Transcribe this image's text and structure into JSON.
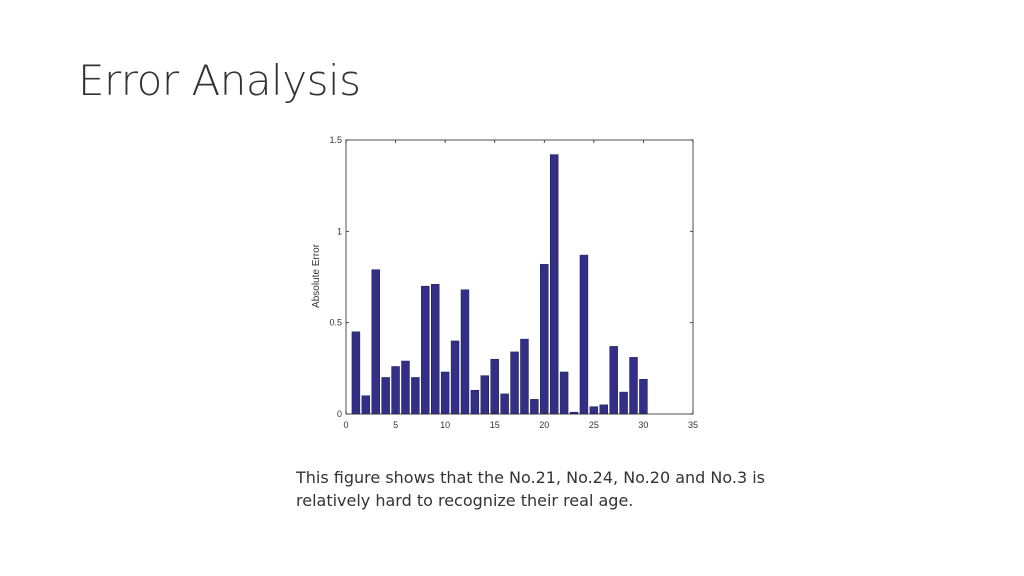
{
  "slide": {
    "title": "Error Analysis",
    "caption": "This figure shows that the No.21, No.24, No.20 and No.3 is relatively hard to recognize their real age."
  },
  "chart_data": {
    "type": "bar",
    "x": [
      1,
      2,
      3,
      4,
      5,
      6,
      7,
      8,
      9,
      10,
      11,
      12,
      13,
      14,
      15,
      16,
      17,
      18,
      19,
      20,
      21,
      22,
      23,
      24,
      25,
      26,
      27,
      28,
      29,
      30
    ],
    "values": [
      0.45,
      0.1,
      0.79,
      0.2,
      0.26,
      0.29,
      0.2,
      0.7,
      0.71,
      0.23,
      0.4,
      0.68,
      0.13,
      0.21,
      0.3,
      0.11,
      0.34,
      0.41,
      0.08,
      0.82,
      1.42,
      0.23,
      0.01,
      0.87,
      0.04,
      0.05,
      0.37,
      0.12,
      0.31,
      0.19
    ],
    "xlabel": "",
    "ylabel": "Absolute Error",
    "xlim": [
      0,
      35
    ],
    "ylim": [
      0,
      1.5
    ],
    "xticks": [
      "0",
      "5",
      "10",
      "15",
      "20",
      "25",
      "30",
      "35"
    ],
    "yticks": [
      "0",
      "0.5",
      "1",
      "1.5"
    ],
    "bar_color": "#332f86",
    "grid": false
  }
}
